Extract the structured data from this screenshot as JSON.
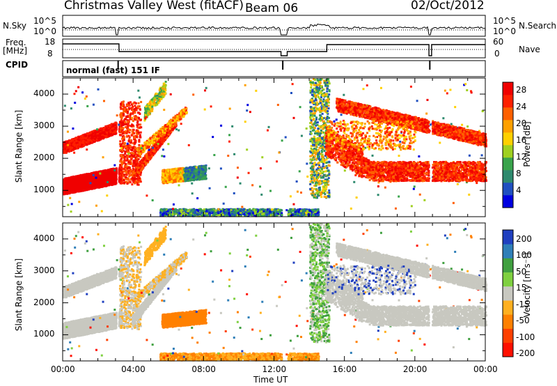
{
  "header": {
    "station": "Christmas Valley West (fitACF)",
    "beam": "Beam 06",
    "date": "02/Oct/2012"
  },
  "strip_labels": {
    "nsky": "N.Sky",
    "nsky_ticks": [
      "10^5",
      "10^0"
    ],
    "nsearch": "N.Search",
    "nsearch_ticks": [
      "10^5",
      "10^0"
    ],
    "freq": "Freq.",
    "freq_unit": "[MHz]",
    "freq_ticks": [
      "18",
      "8"
    ],
    "nave": "Nave",
    "nave_ticks": [
      "60",
      "0"
    ],
    "cpid": "CPID",
    "cpid_value": "normal (fast) 151 IF"
  },
  "chart_data": [
    {
      "type": "heatmap",
      "name": "power",
      "ylabel": "Slant Range [km]",
      "yticks": [
        1000,
        2000,
        3000,
        4000
      ],
      "ylim": [
        180,
        4500
      ],
      "xlim": [
        0,
        24
      ],
      "colorbar": {
        "label": "Power [dB]",
        "ticks": [
          4,
          8,
          12,
          16,
          20,
          24,
          28
        ],
        "range": [
          0,
          30
        ],
        "colors": [
          "#0000e0",
          "#2050c0",
          "#2e8a6e",
          "#3aa44c",
          "#9fd020",
          "#ffd000",
          "#ffa000",
          "#ff6000",
          "#ff2000",
          "#f00000"
        ]
      }
    },
    {
      "type": "heatmap",
      "name": "velocity",
      "ylabel": "Slant Range [km]",
      "yticks": [
        1000,
        2000,
        3000,
        4000
      ],
      "ylim": [
        180,
        4500
      ],
      "xlim": [
        0,
        24
      ],
      "xlabel": "Time UT",
      "xticks": [
        "00:00",
        "04:00",
        "08:00",
        "12:00",
        "16:00",
        "20:00",
        "00:00"
      ],
      "colorbar": {
        "label": "Velocity [m s⁻¹]",
        "ticks": [
          "200",
          "100",
          "50",
          "15",
          "-15",
          "-50",
          "-100",
          "-200"
        ],
        "colors": [
          "#2040c0",
          "#2f7fb8",
          "#40a040",
          "#7fd040",
          "#c8c8c0",
          "#ffb020",
          "#ff8000",
          "#ff4000",
          "#ff1000"
        ]
      }
    }
  ],
  "colors": {
    "gray": "#c8c8c0",
    "ground_scatter_orange": "#f5a000"
  }
}
